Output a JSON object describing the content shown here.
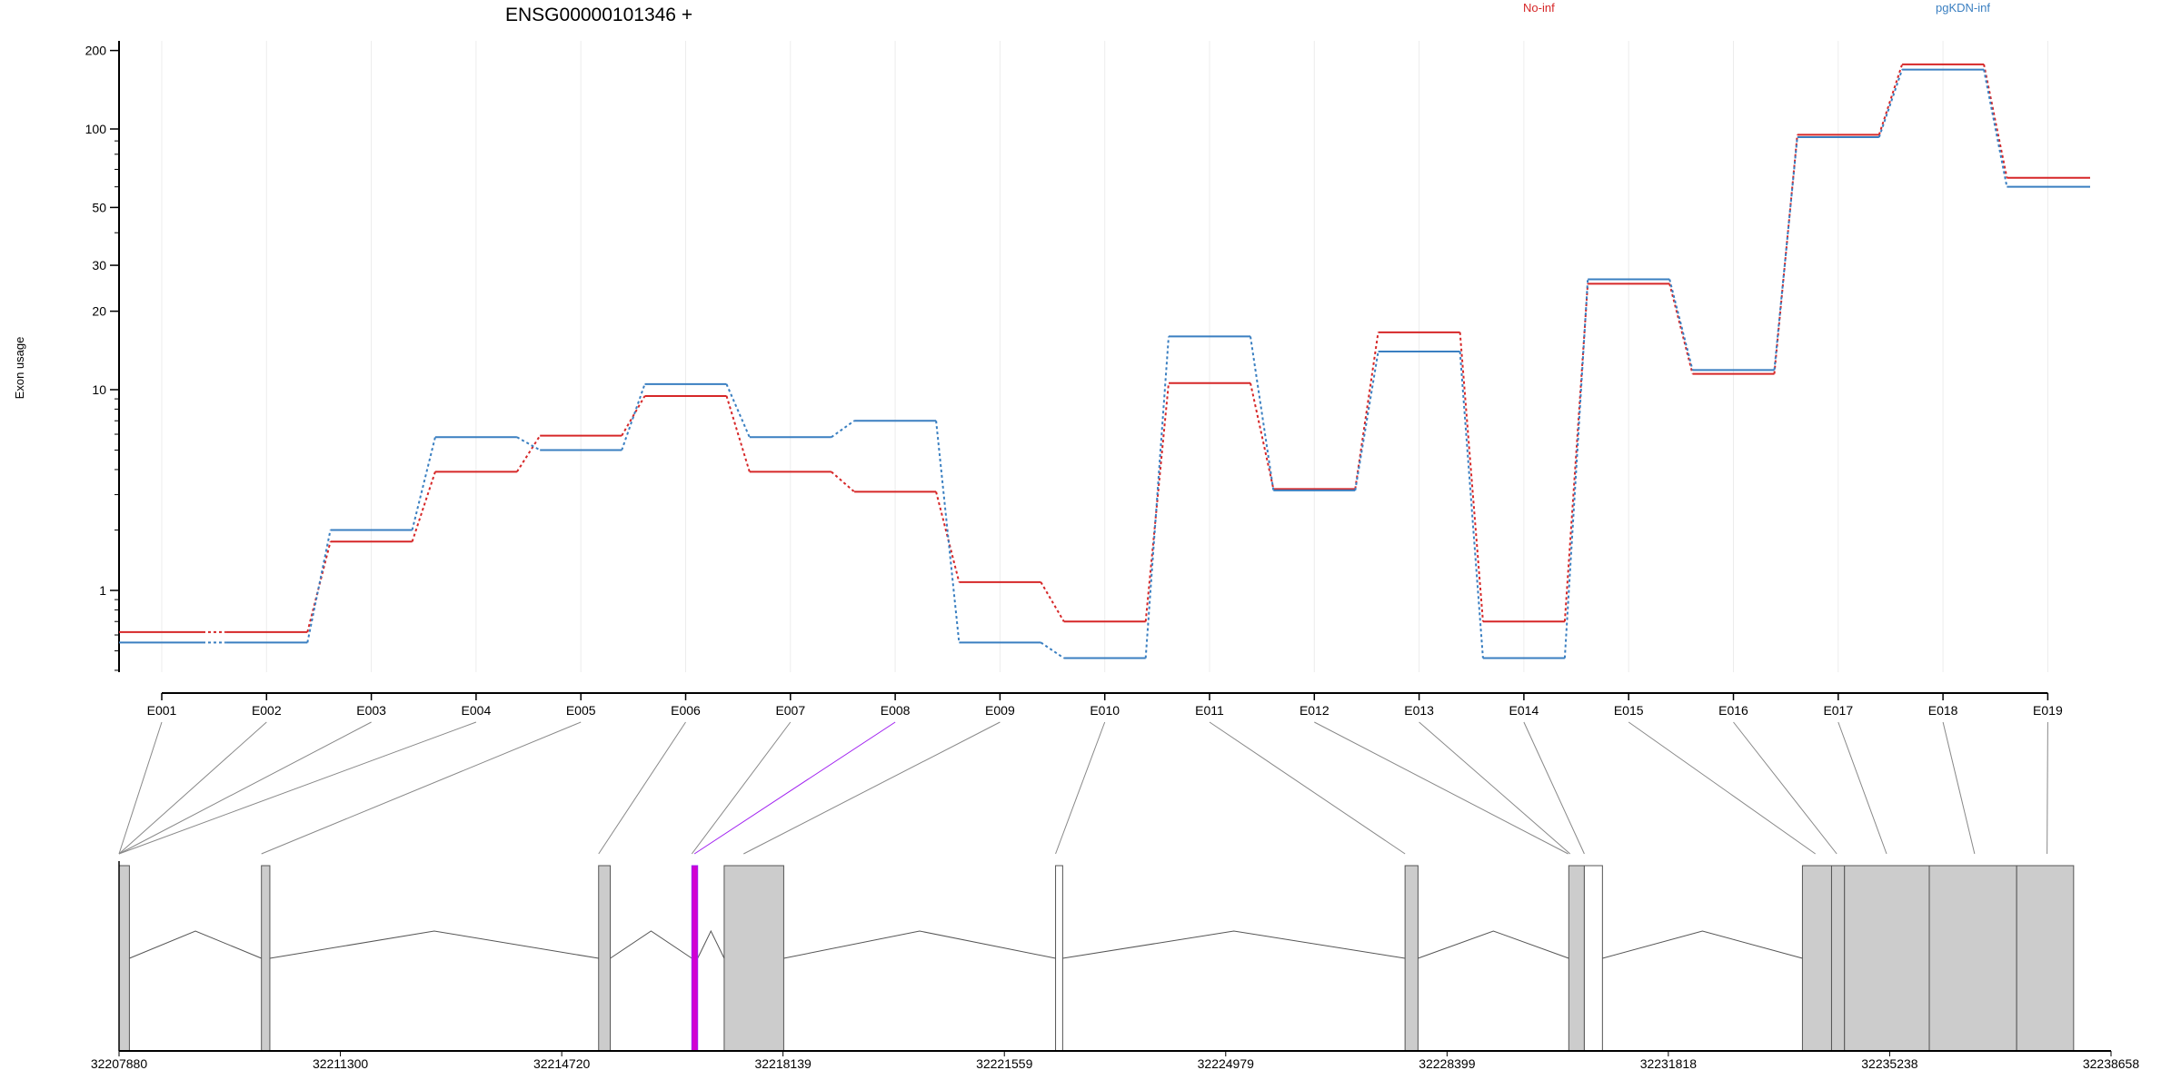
{
  "chart_data": {
    "type": "line",
    "title": "ENSG00000101346 +",
    "ylabel": "Exon usage",
    "xlabel": "",
    "y_scale": "log",
    "ylim": [
      0.4,
      220
    ],
    "yticks": [
      1,
      10,
      20,
      30,
      50,
      100,
      200
    ],
    "grid": "vertical",
    "legend_position": "top-right",
    "categories": [
      "E001",
      "E002",
      "E003",
      "E004",
      "E005",
      "E006",
      "E007",
      "E008",
      "E009",
      "E010",
      "E011",
      "E012",
      "E013",
      "E014",
      "E015",
      "E016",
      "E017",
      "E018",
      "E019"
    ],
    "series": [
      {
        "name": "No-inf",
        "color": "#d62728",
        "values": [
          0.62,
          0.62,
          1.75,
          3.9,
          5.9,
          9.3,
          3.9,
          3.1,
          1.1,
          0.7,
          10.6,
          3.2,
          16.6,
          0.7,
          25.5,
          11.5,
          95,
          177,
          65
        ]
      },
      {
        "name": "pgKDN-inf",
        "color": "#3a7fc1",
        "values": [
          0.55,
          0.55,
          2.0,
          5.8,
          5.0,
          10.5,
          5.8,
          7.0,
          0.55,
          0.46,
          16.0,
          3.15,
          14.0,
          0.46,
          26.5,
          11.9,
          93,
          169,
          60
        ]
      }
    ],
    "gene_model": {
      "coordinate_ticks": [
        "32207880",
        "32211300",
        "32214720",
        "32218139",
        "32221559",
        "32224979",
        "32228399",
        "32231818",
        "32235238",
        "32238658"
      ],
      "coord_min": 32207880,
      "coord_max": 32238658,
      "exons": [
        {
          "start": 32207880,
          "end": 32208040,
          "type": "gray"
        },
        {
          "start": 32210080,
          "end": 32210210,
          "type": "gray"
        },
        {
          "start": 32215290,
          "end": 32215470,
          "type": "gray"
        },
        {
          "start": 32216730,
          "end": 32216820,
          "type": "highlight"
        },
        {
          "start": 32217230,
          "end": 32218150,
          "type": "gray"
        },
        {
          "start": 32222350,
          "end": 32222460,
          "type": "white"
        },
        {
          "start": 32227750,
          "end": 32227950,
          "type": "gray"
        },
        {
          "start": 32230280,
          "end": 32230520,
          "type": "gray"
        },
        {
          "start": 32230520,
          "end": 32230800,
          "type": "white"
        },
        {
          "start": 32233890,
          "end": 32234340,
          "type": "gray"
        },
        {
          "start": 32234340,
          "end": 32234540,
          "type": "gray"
        },
        {
          "start": 32234540,
          "end": 32235850,
          "type": "gray"
        },
        {
          "start": 32235850,
          "end": 32237200,
          "type": "gray"
        },
        {
          "start": 32237200,
          "end": 32238080,
          "type": "gray"
        }
      ],
      "introns": [
        {
          "from": 32208040,
          "to": 32210080
        },
        {
          "from": 32210210,
          "to": 32215290
        },
        {
          "from": 32215470,
          "to": 32216730
        },
        {
          "from": 32216820,
          "to": 32217230
        },
        {
          "from": 32218150,
          "to": 32222350
        },
        {
          "from": 32222460,
          "to": 32227750
        },
        {
          "from": 32227950,
          "to": 32230280
        },
        {
          "from": 32230800,
          "to": 32233890
        }
      ],
      "exon_links": [
        {
          "exon": "E001",
          "pos": 32207880
        },
        {
          "exon": "E002",
          "pos": 32207880
        },
        {
          "exon": "E003",
          "pos": 32207880
        },
        {
          "exon": "E004",
          "pos": 32207880
        },
        {
          "exon": "E005",
          "pos": 32210080
        },
        {
          "exon": "E006",
          "pos": 32215290
        },
        {
          "exon": "E007",
          "pos": 32216730
        },
        {
          "exon": "E008",
          "pos": 32216770,
          "highlight": true
        },
        {
          "exon": "E009",
          "pos": 32217530
        },
        {
          "exon": "E010",
          "pos": 32222350
        },
        {
          "exon": "E011",
          "pos": 32227750
        },
        {
          "exon": "E012",
          "pos": 32230270
        },
        {
          "exon": "E013",
          "pos": 32230300
        },
        {
          "exon": "E014",
          "pos": 32230520
        },
        {
          "exon": "E015",
          "pos": 32234090
        },
        {
          "exon": "E016",
          "pos": 32234420
        },
        {
          "exon": "E017",
          "pos": 32235190
        },
        {
          "exon": "E018",
          "pos": 32236550
        },
        {
          "exon": "E019",
          "pos": 32237670
        }
      ]
    }
  }
}
